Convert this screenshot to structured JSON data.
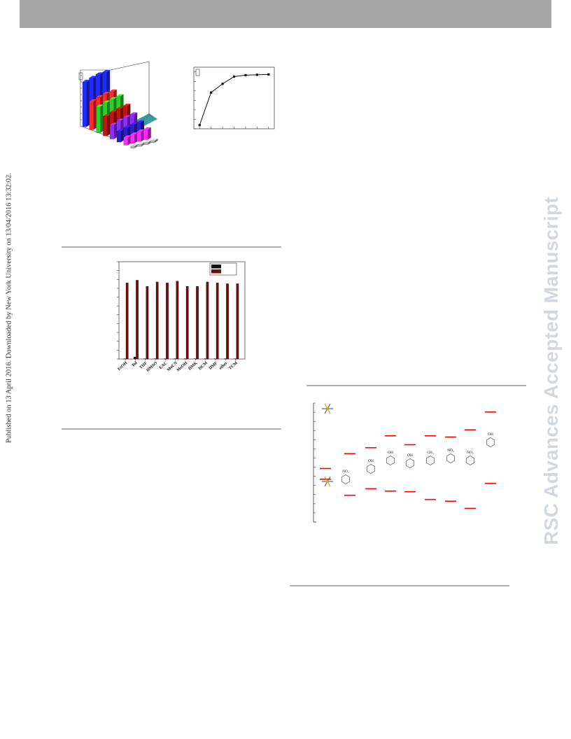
{
  "watermark": {
    "published_text": "Published on 13 April 2016. Downloaded by New York University on 13/04/2016 13:32:02.",
    "journal_text": "RSC Advances Accepted Manuscript"
  },
  "colors": {
    "header_bar": "#a6a6a6",
    "journal_watermark": "#d3d7e0",
    "bar_dark_red": "#6b0f0f",
    "marker_red": "#ff0000"
  },
  "chart_data": [
    {
      "type": "bar",
      "style": "3d",
      "rows": [
        {
          "values": [
            8.2,
            8.6,
            8.9,
            9.0
          ]
        },
        {
          "values": [
            5.2,
            5.6,
            5.9,
            6.0
          ]
        },
        {
          "values": [
            4.8,
            5.2,
            5.5,
            5.7
          ]
        },
        {
          "values": [
            3.6,
            4.0,
            4.3,
            4.5
          ]
        },
        {
          "values": [
            2.6,
            3.0,
            3.3,
            3.5
          ]
        },
        {
          "values": [
            2.0,
            2.3,
            2.5,
            2.6
          ]
        },
        {
          "values": [
            1.4,
            1.6,
            1.8,
            1.9
          ]
        },
        {
          "values": [
            0.4,
            0.4,
            0.4,
            0.4
          ]
        }
      ]
    },
    {
      "type": "line",
      "x": [
        1,
        2,
        3,
        4,
        5,
        6,
        7
      ],
      "values": [
        0.5,
        5.0,
        6.2,
        7.2,
        7.4,
        7.45,
        7.5
      ],
      "ylim": [
        0,
        8.5
      ],
      "xlim": [
        0.5,
        7.5
      ]
    },
    {
      "type": "bar",
      "categories": [
        "EtOH",
        "Tol",
        "THF",
        "DMSO",
        "EAC",
        "MeCN",
        "MeOH",
        "DMK",
        "DCM",
        "DMF",
        "ether",
        "TCM"
      ],
      "series": [
        {
          "values": [
            0.5,
            2.5,
            0.5,
            0.5,
            0.5,
            0.5,
            0.5,
            0.5,
            0.5,
            0.5,
            0.5,
            0.5
          ]
        },
        {
          "values": [
            87,
            90,
            83,
            88,
            87,
            89,
            83,
            83,
            88,
            87,
            86,
            86
          ]
        }
      ],
      "ylim": [
        0,
        100
      ],
      "legend": "top-right"
    },
    {
      "type": "energy-level",
      "upper": [
        90,
        115,
        125,
        145,
        130,
        145,
        143,
        155,
        185
      ],
      "lower": [
        72,
        45,
        56,
        52,
        51,
        38,
        35,
        23,
        65
      ],
      "ylim": [
        0,
        200
      ],
      "molecules": [
        {
          "label": ""
        },
        {
          "label": "NO₂"
        },
        {
          "label": "OH"
        },
        {
          "label": "OH"
        },
        {
          "label": "OH"
        },
        {
          "label": "CH₃"
        },
        {
          "label": "NO₂"
        },
        {
          "label": "NO₂"
        },
        {
          "label": "OH"
        }
      ]
    }
  ]
}
